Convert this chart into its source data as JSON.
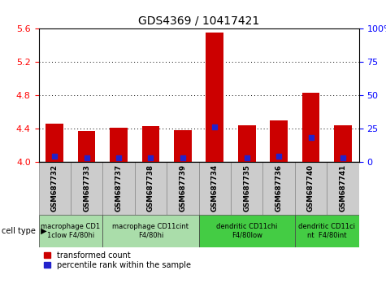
{
  "title": "GDS4369 / 10417421",
  "samples": [
    "GSM687732",
    "GSM687733",
    "GSM687737",
    "GSM687738",
    "GSM687739",
    "GSM687734",
    "GSM687735",
    "GSM687736",
    "GSM687740",
    "GSM687741"
  ],
  "transformed_count": [
    4.46,
    4.37,
    4.41,
    4.43,
    4.38,
    5.55,
    4.44,
    4.5,
    4.83,
    4.44
  ],
  "percentile_rank_pct": [
    4.0,
    3.0,
    3.0,
    3.0,
    3.0,
    26.0,
    3.0,
    4.0,
    18.0,
    3.0
  ],
  "ylim_left": [
    4.0,
    5.6
  ],
  "ylim_right": [
    0,
    100
  ],
  "yticks_left": [
    4.0,
    4.4,
    4.8,
    5.2,
    5.6
  ],
  "yticks_right": [
    0,
    25,
    50,
    75,
    100
  ],
  "bar_color": "#cc0000",
  "dot_color": "#2222cc",
  "cell_type_groups": [
    {
      "label": "macrophage CD1\n1clow F4/80hi",
      "start": 0,
      "end": 2,
      "color": "#aaddaa"
    },
    {
      "label": "macrophage CD11cint\nF4/80hi",
      "start": 2,
      "end": 5,
      "color": "#aaddaa"
    },
    {
      "label": "dendritic CD11chi\nF4/80low",
      "start": 5,
      "end": 8,
      "color": "#44cc44"
    },
    {
      "label": "dendritic CD11ci\nnt  F4/80int",
      "start": 8,
      "end": 10,
      "color": "#44cc44"
    }
  ],
  "legend_red_label": "transformed count",
  "legend_blue_label": "percentile rank within the sample",
  "cell_type_label": "cell type",
  "background_color": "#ffffff",
  "sample_box_color": "#cccccc",
  "plot_bg_color": "#ffffff"
}
